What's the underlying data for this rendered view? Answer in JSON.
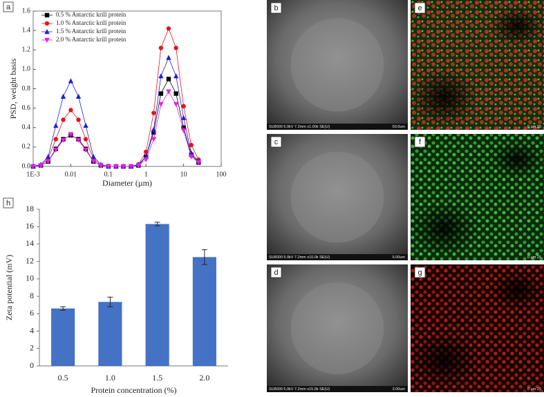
{
  "chart_data": [
    {
      "type": "line",
      "panel": "a",
      "ylabel": "PSD, weight basis",
      "xlabel": "Diameter (µm)",
      "xscale": "log",
      "xlim": [
        0.001,
        100
      ],
      "xticks": [
        {
          "value": 0.001,
          "label": "1E-3"
        },
        0.01,
        0.1,
        1,
        10,
        100
      ],
      "ylim": [
        0,
        1.6
      ],
      "yticks": [
        {
          "value": 0,
          "label": "0.0"
        },
        0.2,
        0.4,
        0.6,
        0.8,
        {
          "value": 1,
          "label": "1.0"
        },
        1.2,
        1.4,
        1.6
      ],
      "legend": "upper-left",
      "x": [
        0.001,
        0.0016,
        0.0025,
        0.004,
        0.0063,
        0.01,
        0.016,
        0.025,
        0.04,
        0.063,
        0.1,
        0.16,
        0.25,
        0.4,
        0.63,
        1,
        1.6,
        2.5,
        4,
        6.3,
        10,
        16,
        25
      ],
      "series": [
        {
          "name": "0.5 % Antarctic krill protein",
          "color": "#000000",
          "marker": "square",
          "values": [
            0,
            0.01,
            0.05,
            0.18,
            0.28,
            0.32,
            0.28,
            0.18,
            0.05,
            0.01,
            0,
            0,
            0,
            0,
            0.01,
            0.1,
            0.35,
            0.75,
            0.9,
            0.75,
            0.4,
            0.12,
            0.04
          ]
        },
        {
          "name": "1.0 % Antarctic krill protein",
          "color": "#e8141c",
          "marker": "circle",
          "values": [
            0,
            0.01,
            0.08,
            0.28,
            0.48,
            0.58,
            0.48,
            0.28,
            0.08,
            0.01,
            0,
            0,
            0,
            0,
            0.02,
            0.15,
            0.55,
            1.22,
            1.42,
            1.22,
            0.62,
            0.22,
            0.07
          ]
        },
        {
          "name": "1.5 % Antarctic krill protein",
          "color": "#1a22d6",
          "marker": "triangle-up",
          "values": [
            0,
            0.02,
            0.1,
            0.42,
            0.72,
            0.88,
            0.72,
            0.42,
            0.1,
            0.02,
            0,
            0,
            0,
            0,
            0.02,
            0.1,
            0.38,
            0.93,
            1.12,
            0.93,
            0.5,
            0.14,
            0.05
          ]
        },
        {
          "name": "2.0 % Antarctic krill protein",
          "color": "#e81ee8",
          "marker": "triangle-down",
          "values": [
            0,
            0.01,
            0.05,
            0.17,
            0.27,
            0.33,
            0.27,
            0.17,
            0.05,
            0.01,
            0,
            0,
            0,
            0,
            0.01,
            0.07,
            0.28,
            0.64,
            0.77,
            0.64,
            0.37,
            0.1,
            0.04
          ]
        }
      ]
    },
    {
      "type": "bar",
      "panel": "h",
      "ylabel": "Zeta potential (mV)",
      "xlabel": "Protein concentration (%)",
      "categories": [
        "0.5",
        "1.0",
        "1.5",
        "2.0"
      ],
      "values": [
        6.6,
        7.35,
        16.3,
        12.5
      ],
      "errors": [
        0.2,
        0.55,
        0.2,
        0.85
      ],
      "color": "#4472c4",
      "ylim": [
        0,
        18
      ],
      "yticks": [
        0,
        2,
        4,
        6,
        8,
        10,
        12,
        14,
        16,
        18
      ]
    }
  ],
  "micrographs": [
    {
      "panel": "b",
      "kind": "sem",
      "caption": "SU8000 5.0kV 7.2mm x1.00k SE(U)",
      "scale": "50.0um"
    },
    {
      "panel": "c",
      "kind": "sem",
      "caption": "SU8000 5.0kV 7.2mm x10.0k SE(U)",
      "scale": "5.00um"
    },
    {
      "panel": "d",
      "kind": "sem",
      "caption": "SU8000 5.0kV 7.2mm x15.0k SE(U)",
      "scale": "3.00um"
    },
    {
      "panel": "e",
      "kind": "merge",
      "scale": "0    µm   25"
    },
    {
      "panel": "f",
      "kind": "green",
      "scale": "0    µm   25"
    },
    {
      "panel": "g",
      "kind": "red",
      "scale": "0    µm   25"
    }
  ]
}
